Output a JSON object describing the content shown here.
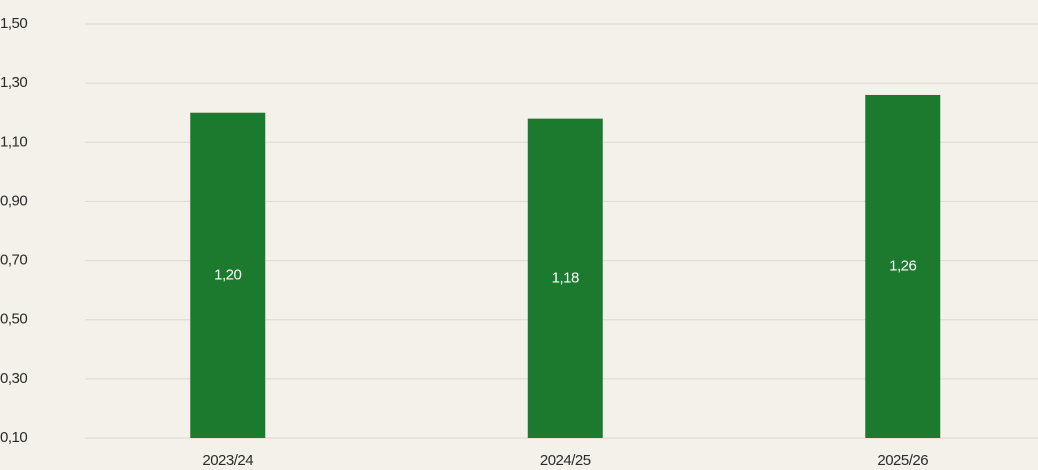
{
  "chart_data": {
    "type": "bar",
    "categories": [
      "2023/24",
      "2024/25",
      "2025/26"
    ],
    "values": [
      1.2,
      1.18,
      1.26
    ],
    "value_labels": [
      "1,20",
      "1,18",
      "1,26"
    ],
    "color": "#1b7a2d",
    "ylim": [
      0.1,
      1.5
    ],
    "yticks": [
      {
        "value": 0.1,
        "label": "0,10"
      },
      {
        "value": 0.3,
        "label": "0,30"
      },
      {
        "value": 0.5,
        "label": "0,50"
      },
      {
        "value": 0.7,
        "label": "0,70"
      },
      {
        "value": 0.9,
        "label": "0,90"
      },
      {
        "value": 1.1,
        "label": "1,10"
      },
      {
        "value": 1.3,
        "label": "1,30"
      },
      {
        "value": 1.5,
        "label": "1,50"
      }
    ],
    "grid": true
  }
}
